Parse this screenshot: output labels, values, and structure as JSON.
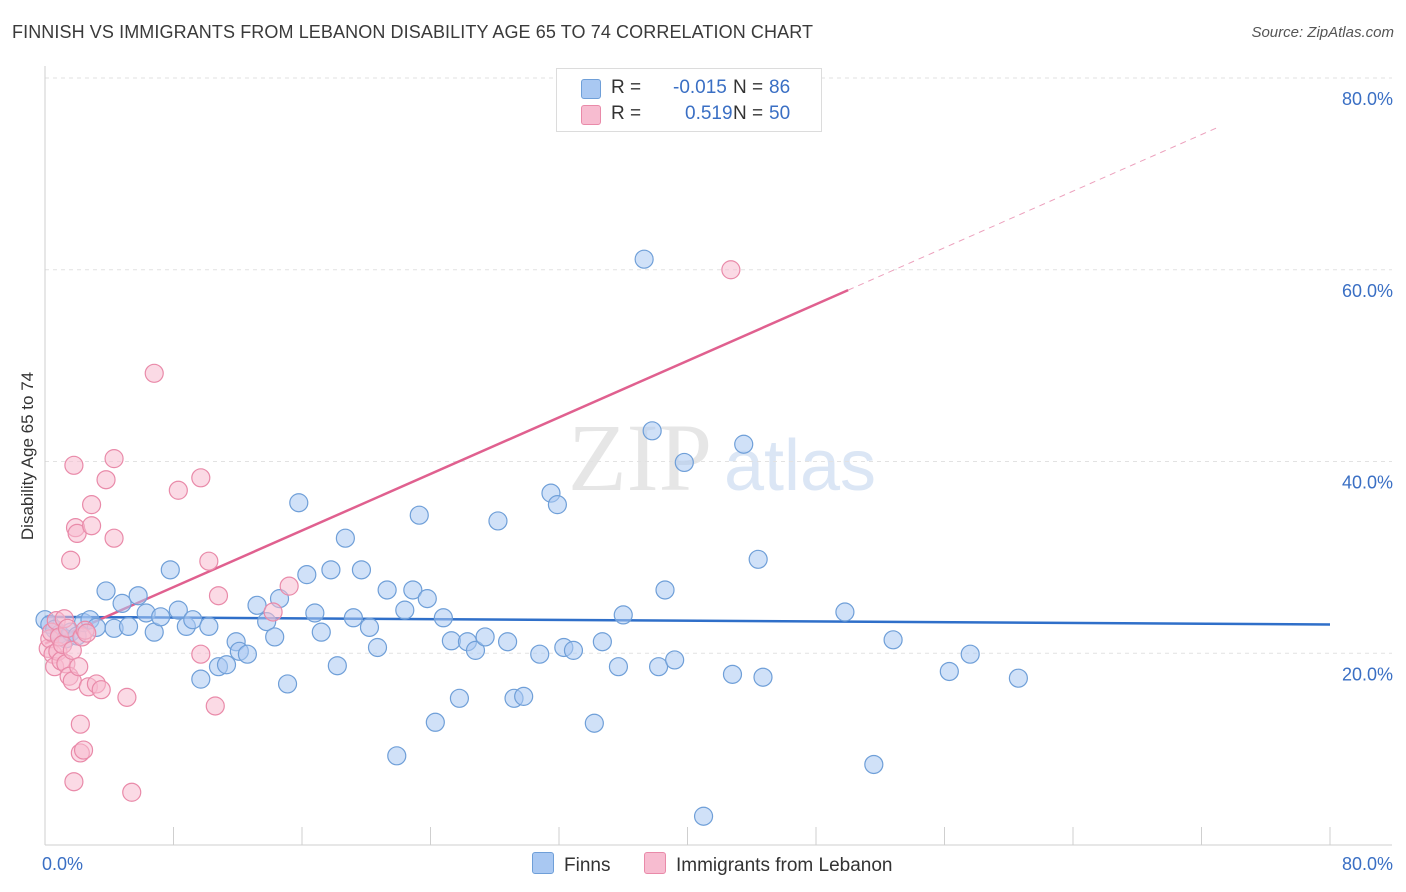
{
  "header": {
    "title": "FINNISH VS IMMIGRANTS FROM LEBANON DISABILITY AGE 65 TO 74 CORRELATION CHART",
    "source": "Source: ZipAtlas.com"
  },
  "watermark": {
    "zip": "ZIP",
    "atlas": "atlas"
  },
  "legend": {
    "rows": [
      {
        "r_label": "R =",
        "r_value": "-0.015",
        "n_label": "N =",
        "n_value": "86",
        "color": "#a9c8f2",
        "border": "#6f9fd8"
      },
      {
        "r_label": "R =",
        "r_value": "0.519",
        "n_label": "N =",
        "n_value": "50",
        "color": "#f7bcd0",
        "border": "#e98aa9"
      }
    ]
  },
  "chart_data": {
    "type": "scatter",
    "title": "FINNISH VS IMMIGRANTS FROM LEBANON DISABILITY AGE 65 TO 74 CORRELATION CHART",
    "xlabel": "",
    "ylabel": "Disability Age 65 to 74",
    "xlim": [
      0,
      80
    ],
    "ylim": [
      0,
      80
    ],
    "x_tick_labels": [
      "0.0%",
      "80.0%"
    ],
    "y_ticks": [
      20,
      40,
      60,
      80
    ],
    "y_tick_labels": [
      "20.0%",
      "40.0%",
      "60.0%",
      "80.0%"
    ],
    "grid": true,
    "legend_position": "top-center",
    "series": [
      {
        "name": "Finns",
        "color": "#a9c8f2",
        "stroke": "#6f9fd8",
        "line_color": "#2f6fc9",
        "trend": {
          "x": [
            0,
            80
          ],
          "y": [
            23.8,
            23.0
          ],
          "dashed_extension": false
        },
        "points": [
          [
            0,
            23.5
          ],
          [
            0.3,
            23
          ],
          [
            0.6,
            22.5
          ],
          [
            0.9,
            22
          ],
          [
            1.3,
            21.5
          ],
          [
            1.6,
            22.2
          ],
          [
            2.0,
            21.8
          ],
          [
            2.4,
            23.2
          ],
          [
            2.8,
            23.5
          ],
          [
            3.2,
            22.7
          ],
          [
            3.8,
            26.5
          ],
          [
            4.3,
            22.6
          ],
          [
            4.8,
            25.2
          ],
          [
            5.2,
            22.8
          ],
          [
            5.8,
            26
          ],
          [
            6.3,
            24.2
          ],
          [
            6.8,
            22.2
          ],
          [
            7.2,
            23.8
          ],
          [
            7.8,
            28.7
          ],
          [
            8.3,
            24.5
          ],
          [
            8.8,
            22.8
          ],
          [
            9.2,
            23.5
          ],
          [
            9.7,
            17.3
          ],
          [
            10.2,
            22.8
          ],
          [
            10.8,
            18.6
          ],
          [
            11.3,
            18.8
          ],
          [
            11.9,
            21.2
          ],
          [
            12.1,
            20.2
          ],
          [
            12.6,
            19.9
          ],
          [
            13.2,
            25
          ],
          [
            13.8,
            23.3
          ],
          [
            14.3,
            21.7
          ],
          [
            14.6,
            25.7
          ],
          [
            15.1,
            16.8
          ],
          [
            15.8,
            35.7
          ],
          [
            16.3,
            28.2
          ],
          [
            16.8,
            24.2
          ],
          [
            17.2,
            22.2
          ],
          [
            17.8,
            28.7
          ],
          [
            18.2,
            18.7
          ],
          [
            18.7,
            32
          ],
          [
            19.2,
            23.7
          ],
          [
            19.7,
            28.7
          ],
          [
            20.2,
            22.7
          ],
          [
            20.7,
            20.6
          ],
          [
            21.3,
            26.6
          ],
          [
            21.9,
            9.3
          ],
          [
            22.4,
            24.5
          ],
          [
            22.9,
            26.6
          ],
          [
            23.3,
            34.4
          ],
          [
            23.8,
            25.7
          ],
          [
            24.3,
            12.8
          ],
          [
            24.8,
            23.7
          ],
          [
            25.3,
            21.3
          ],
          [
            25.8,
            15.3
          ],
          [
            26.3,
            21.2
          ],
          [
            26.8,
            20.3
          ],
          [
            27.4,
            21.7
          ],
          [
            28.2,
            33.8
          ],
          [
            28.8,
            21.2
          ],
          [
            29.2,
            15.3
          ],
          [
            29.8,
            15.5
          ],
          [
            30.8,
            19.9
          ],
          [
            31.5,
            36.7
          ],
          [
            31.9,
            35.5
          ],
          [
            32.3,
            20.6
          ],
          [
            32.9,
            20.3
          ],
          [
            34.2,
            12.7
          ],
          [
            34.7,
            21.2
          ],
          [
            35.7,
            18.6
          ],
          [
            36.0,
            24
          ],
          [
            37.3,
            61.1
          ],
          [
            37.8,
            43.2
          ],
          [
            38.2,
            18.6
          ],
          [
            38.6,
            26.6
          ],
          [
            39.2,
            19.3
          ],
          [
            39.8,
            39.9
          ],
          [
            41.0,
            3
          ],
          [
            42.8,
            17.8
          ],
          [
            43.5,
            41.8
          ],
          [
            44.4,
            29.8
          ],
          [
            44.7,
            17.5
          ],
          [
            49.8,
            24.3
          ],
          [
            51.6,
            8.4
          ],
          [
            52.8,
            21.4
          ],
          [
            56.3,
            18.1
          ],
          [
            57.6,
            19.9
          ],
          [
            60.6,
            17.4
          ]
        ]
      },
      {
        "name": "Immigrants from Lebanon",
        "color": "#f7bcd0",
        "stroke": "#e98aa9",
        "line_color": "#e0608f",
        "trend": {
          "x": [
            0,
            80
          ],
          "y": [
            21.0,
            80.0
          ],
          "solid_until_x": 50
        },
        "points": [
          [
            0.2,
            20.5
          ],
          [
            0.3,
            21.5
          ],
          [
            0.4,
            22.2
          ],
          [
            0.5,
            19.9
          ],
          [
            0.6,
            18.6
          ],
          [
            0.7,
            23.4
          ],
          [
            0.8,
            20.2
          ],
          [
            0.9,
            21.7
          ],
          [
            1.0,
            19.2
          ],
          [
            1.1,
            20.9
          ],
          [
            1.2,
            23.6
          ],
          [
            1.3,
            18.9
          ],
          [
            1.4,
            22.6
          ],
          [
            1.5,
            17.6
          ],
          [
            1.6,
            29.7
          ],
          [
            1.7,
            17.1
          ],
          [
            1.7,
            20.3
          ],
          [
            1.8,
            39.6
          ],
          [
            1.8,
            6.6
          ],
          [
            1.9,
            33.1
          ],
          [
            2.0,
            32.5
          ],
          [
            2.1,
            18.6
          ],
          [
            2.2,
            9.6
          ],
          [
            2.2,
            12.6
          ],
          [
            2.3,
            21.7
          ],
          [
            2.4,
            9.9
          ],
          [
            2.5,
            22.4
          ],
          [
            2.6,
            22.1
          ],
          [
            2.7,
            16.5
          ],
          [
            2.9,
            35.5
          ],
          [
            2.9,
            33.3
          ],
          [
            3.2,
            16.8
          ],
          [
            3.5,
            16.2
          ],
          [
            3.8,
            38.1
          ],
          [
            4.3,
            32
          ],
          [
            4.3,
            40.3
          ],
          [
            5.1,
            15.4
          ],
          [
            5.4,
            5.5
          ],
          [
            6.8,
            49.2
          ],
          [
            8.3,
            37
          ],
          [
            9.7,
            19.9
          ],
          [
            9.7,
            38.3
          ],
          [
            10.2,
            29.6
          ],
          [
            10.6,
            14.5
          ],
          [
            10.8,
            26
          ],
          [
            14.2,
            24.3
          ],
          [
            15.2,
            27
          ],
          [
            42.7,
            60
          ]
        ]
      }
    ]
  },
  "bottom_legend": [
    {
      "label": "Finns",
      "color": "#a9c8f2",
      "border": "#6f9fd8"
    },
    {
      "label": "Immigrants from Lebanon",
      "color": "#f7bcd0",
      "border": "#e98aa9"
    }
  ]
}
